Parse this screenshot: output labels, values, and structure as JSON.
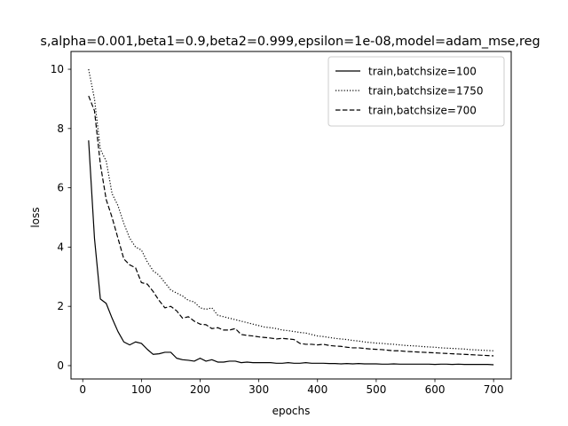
{
  "chart_data": {
    "type": "line",
    "title": "s,alpha=0.001,beta1=0.9,beta2=0.999,epsilon=1e-08,model=adam_mse,reg",
    "xlabel": "epochs",
    "ylabel": "loss",
    "xlim": [
      -20,
      730
    ],
    "ylim": [
      -0.45,
      10.6
    ],
    "xticks": [
      0,
      100,
      200,
      300,
      400,
      500,
      600,
      700
    ],
    "yticks": [
      0,
      2,
      4,
      6,
      8,
      10
    ],
    "grid": false,
    "legend_position": "top-right",
    "x": [
      10,
      20,
      30,
      40,
      50,
      60,
      70,
      80,
      90,
      100,
      110,
      120,
      130,
      140,
      150,
      160,
      170,
      180,
      190,
      200,
      210,
      220,
      230,
      240,
      250,
      260,
      270,
      280,
      290,
      300,
      310,
      320,
      330,
      340,
      350,
      360,
      370,
      380,
      390,
      400,
      410,
      420,
      430,
      440,
      450,
      460,
      470,
      480,
      490,
      500,
      510,
      520,
      530,
      540,
      550,
      560,
      570,
      580,
      590,
      600,
      610,
      620,
      630,
      640,
      650,
      660,
      670,
      680,
      690,
      700
    ],
    "series": [
      {
        "name": "train,batchsize=100",
        "color": "#000000",
        "dash": "solid",
        "values": [
          7.6,
          4.3,
          2.25,
          2.1,
          1.6,
          1.15,
          0.8,
          0.7,
          0.8,
          0.75,
          0.55,
          0.38,
          0.4,
          0.45,
          0.45,
          0.25,
          0.2,
          0.18,
          0.15,
          0.25,
          0.15,
          0.2,
          0.12,
          0.12,
          0.15,
          0.15,
          0.1,
          0.12,
          0.1,
          0.1,
          0.1,
          0.1,
          0.08,
          0.08,
          0.1,
          0.08,
          0.08,
          0.1,
          0.08,
          0.08,
          0.08,
          0.07,
          0.07,
          0.06,
          0.07,
          0.06,
          0.07,
          0.06,
          0.06,
          0.06,
          0.05,
          0.05,
          0.06,
          0.05,
          0.05,
          0.05,
          0.05,
          0.05,
          0.05,
          0.04,
          0.05,
          0.05,
          0.04,
          0.05,
          0.04,
          0.04,
          0.04,
          0.04,
          0.04,
          0.03
        ]
      },
      {
        "name": "train,batchsize=1750",
        "color": "#000000",
        "dash": "dotted",
        "values": [
          10.0,
          9.0,
          7.3,
          6.9,
          5.8,
          5.4,
          4.8,
          4.3,
          4.0,
          3.9,
          3.5,
          3.2,
          3.05,
          2.8,
          2.55,
          2.45,
          2.35,
          2.2,
          2.15,
          1.95,
          1.9,
          1.95,
          1.7,
          1.65,
          1.6,
          1.55,
          1.5,
          1.45,
          1.4,
          1.35,
          1.3,
          1.28,
          1.25,
          1.2,
          1.18,
          1.15,
          1.12,
          1.1,
          1.05,
          1.0,
          0.98,
          0.95,
          0.92,
          0.9,
          0.88,
          0.85,
          0.83,
          0.8,
          0.78,
          0.76,
          0.75,
          0.73,
          0.72,
          0.7,
          0.68,
          0.67,
          0.66,
          0.64,
          0.63,
          0.62,
          0.6,
          0.59,
          0.58,
          0.57,
          0.56,
          0.54,
          0.53,
          0.52,
          0.51,
          0.5
        ]
      },
      {
        "name": "train,batchsize=700",
        "color": "#000000",
        "dash": "dashed",
        "values": [
          9.1,
          8.6,
          6.8,
          5.6,
          5.0,
          4.3,
          3.6,
          3.4,
          3.3,
          2.8,
          2.75,
          2.5,
          2.2,
          1.95,
          2.0,
          1.85,
          1.6,
          1.65,
          1.5,
          1.4,
          1.38,
          1.25,
          1.28,
          1.2,
          1.2,
          1.25,
          1.05,
          1.02,
          1.0,
          0.97,
          0.95,
          0.93,
          0.9,
          0.92,
          0.9,
          0.88,
          0.75,
          0.72,
          0.72,
          0.7,
          0.72,
          0.68,
          0.66,
          0.65,
          0.62,
          0.6,
          0.6,
          0.58,
          0.56,
          0.55,
          0.54,
          0.52,
          0.5,
          0.5,
          0.48,
          0.47,
          0.46,
          0.45,
          0.44,
          0.43,
          0.42,
          0.41,
          0.4,
          0.39,
          0.38,
          0.37,
          0.36,
          0.35,
          0.34,
          0.33
        ]
      }
    ]
  }
}
